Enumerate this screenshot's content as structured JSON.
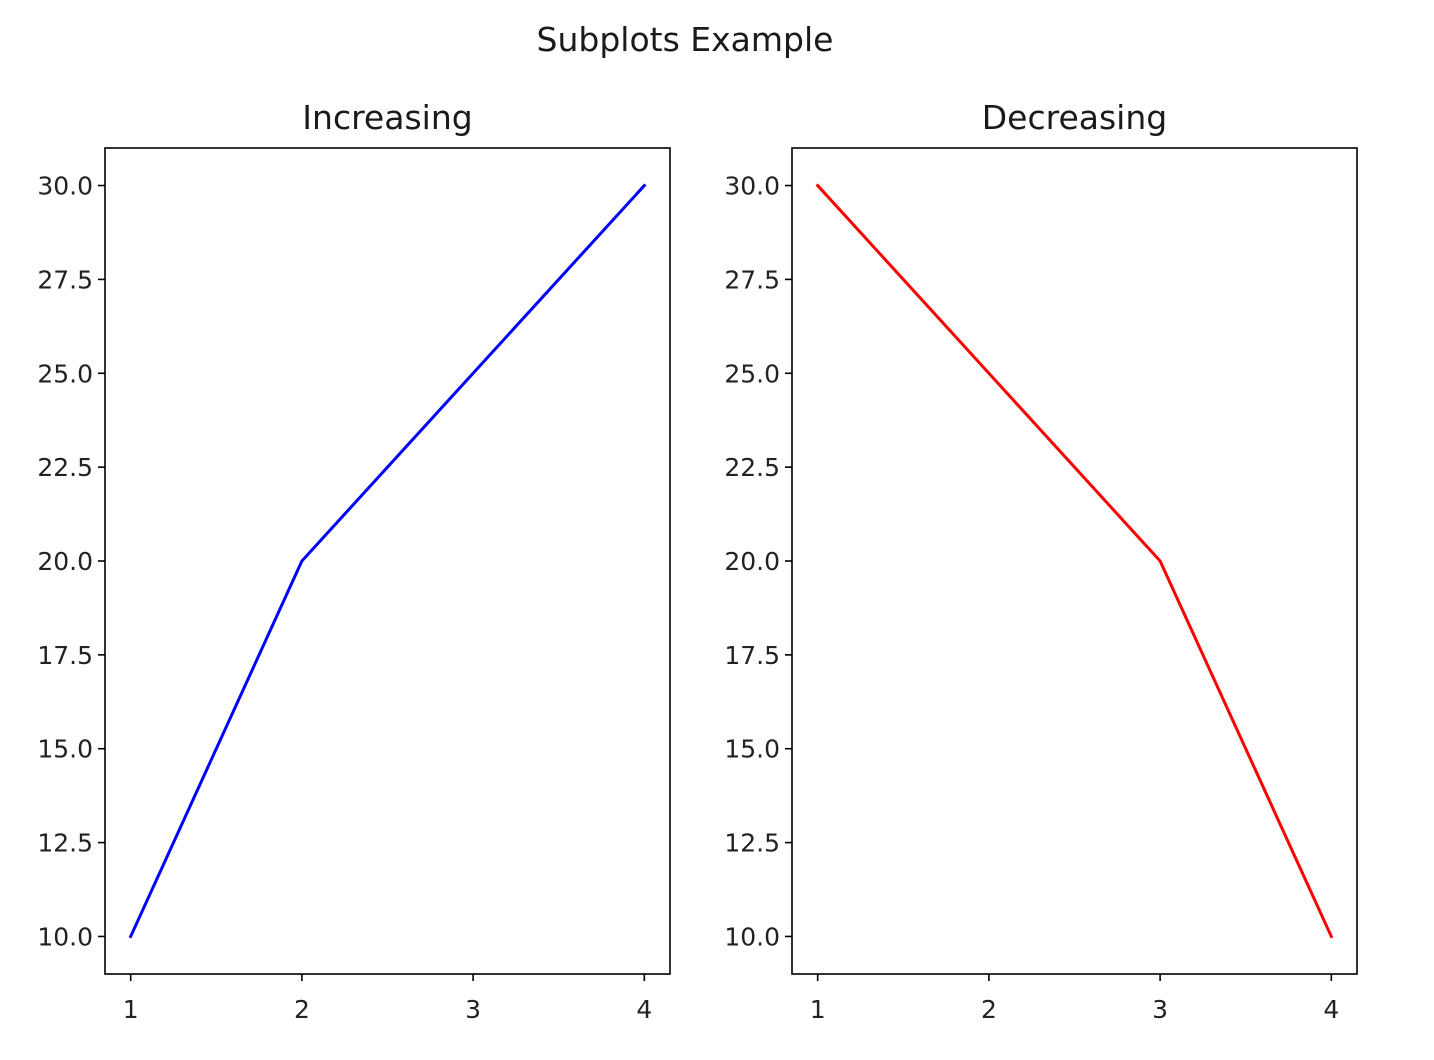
{
  "chart_data": {
    "title": "Subplots Example",
    "subplots": [
      {
        "type": "line",
        "title": "Increasing",
        "xlabel": "",
        "ylabel": "",
        "x": [
          1,
          2,
          3,
          4
        ],
        "series": [
          {
            "values": [
              10,
              20,
              25,
              30
            ],
            "color": "#0000ff"
          }
        ],
        "xlim": [
          0.85,
          4.15
        ],
        "ylim": [
          9.0,
          31.0
        ],
        "xticks": [
          1,
          2,
          3,
          4
        ],
        "xtick_labels": [
          "1",
          "2",
          "3",
          "4"
        ],
        "yticks": [
          10.0,
          12.5,
          15.0,
          17.5,
          20.0,
          22.5,
          25.0,
          27.5,
          30.0
        ],
        "ytick_labels": [
          "10.0",
          "12.5",
          "15.0",
          "17.5",
          "20.0",
          "22.5",
          "25.0",
          "27.5",
          "30.0"
        ],
        "grid": false,
        "legend": "none"
      },
      {
        "type": "line",
        "title": "Decreasing",
        "xlabel": "",
        "ylabel": "",
        "x": [
          1,
          2,
          3,
          4
        ],
        "series": [
          {
            "values": [
              30,
              25,
              20,
              10
            ],
            "color": "#ff0000"
          }
        ],
        "xlim": [
          0.85,
          4.15
        ],
        "ylim": [
          9.0,
          31.0
        ],
        "xticks": [
          1,
          2,
          3,
          4
        ],
        "xtick_labels": [
          "1",
          "2",
          "3",
          "4"
        ],
        "yticks": [
          10.0,
          12.5,
          15.0,
          17.5,
          20.0,
          22.5,
          25.0,
          27.5,
          30.0
        ],
        "ytick_labels": [
          "10.0",
          "12.5",
          "15.0",
          "17.5",
          "20.0",
          "22.5",
          "25.0",
          "27.5",
          "30.0"
        ],
        "grid": false,
        "legend": "none"
      }
    ]
  }
}
